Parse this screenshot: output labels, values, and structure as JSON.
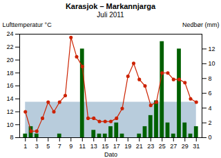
{
  "chart_data": {
    "type": "line",
    "title": "Karasjok – Markannjarga",
    "subtitle": "Juli 2011",
    "xlabel": "Dato",
    "ylabel": "Lufttemperatur °C",
    "y2label": "Nedbør (mm)",
    "x": [
      1,
      2,
      3,
      4,
      5,
      6,
      7,
      8,
      9,
      10,
      11,
      12,
      13,
      14,
      15,
      16,
      17,
      18,
      19,
      20,
      21,
      22,
      23,
      24,
      25,
      26,
      27,
      28,
      29,
      30,
      31
    ],
    "xlim": [
      0.0,
      32.0
    ],
    "xticks": [
      1,
      3,
      5,
      7,
      9,
      11,
      13,
      15,
      17,
      19,
      21,
      23,
      25,
      27,
      29,
      31
    ],
    "ylim": [
      8.0,
      24.0
    ],
    "yticks": [
      8.0,
      10.0,
      12.0,
      14.0,
      16.0,
      18.0,
      20.0,
      22.0,
      24.0
    ],
    "y2lim": [
      0.0,
      14.0
    ],
    "y2ticks": [
      0.0,
      2.0,
      4.0,
      6.0,
      8.0,
      10.0,
      12.0
    ],
    "normal_band": {
      "value": 13.5,
      "color": "#b8ccdc"
    },
    "series": [
      {
        "type": "bar",
        "axis": "y2",
        "color": "#006000",
        "values": [
          0.5,
          1.5,
          0.5,
          0.0,
          0.0,
          0.0,
          0.5,
          0.0,
          0.0,
          0.0,
          12.0,
          0.0,
          1.0,
          0.5,
          0.5,
          1.5,
          2.0,
          0.5,
          0.0,
          0.0,
          0.5,
          1.5,
          3.0,
          5.0,
          13.0,
          2.0,
          0.5,
          12.0,
          2.0,
          0.5,
          1.5
        ]
      },
      {
        "type": "line",
        "axis": "y",
        "color": "#cc2200",
        "marker": "o",
        "values": [
          12.0,
          9.0,
          9.0,
          11.0,
          13.5,
          12.0,
          13.5,
          14.5,
          23.5,
          20.5,
          19.0,
          11.0,
          11.0,
          10.5,
          10.5,
          10.5,
          11.0,
          12.5,
          17.5,
          19.5,
          17.0,
          16.0,
          13.0,
          13.5,
          18.0,
          18.0,
          17.0,
          17.0,
          16.5,
          14.0,
          13.5
        ]
      }
    ]
  }
}
